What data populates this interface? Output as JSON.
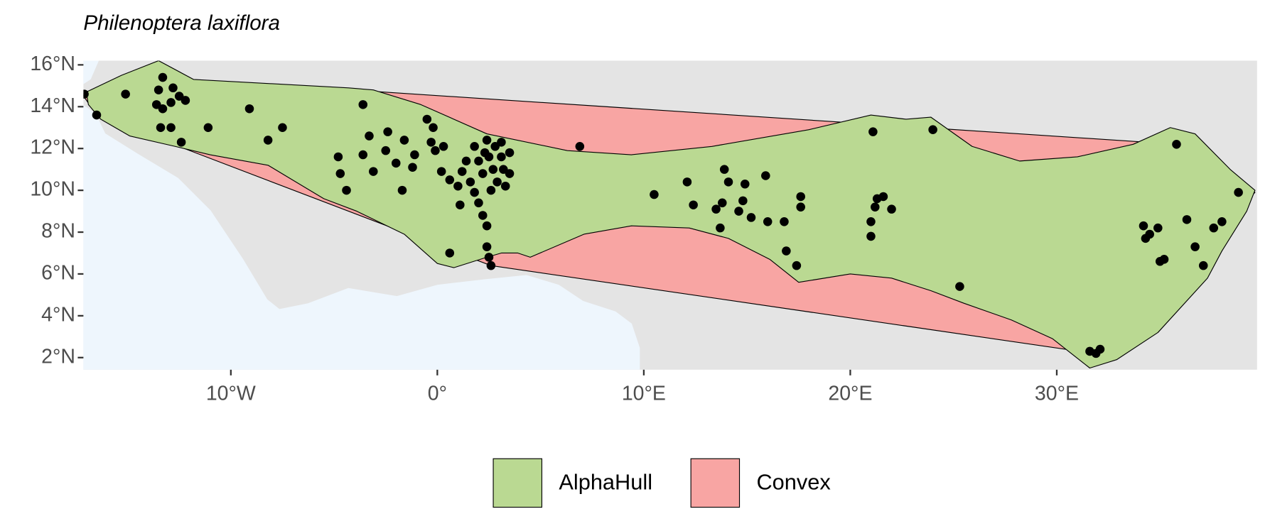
{
  "chart_data": {
    "type": "map",
    "title": "Philenoptera laxiflora",
    "xlim": [
      -17.14,
      39.7
    ],
    "ylim": [
      1.42,
      16.2
    ],
    "xticks": [
      {
        "value": -10,
        "label": "10°W"
      },
      {
        "value": 0,
        "label": "0°"
      },
      {
        "value": 10,
        "label": "10°E"
      },
      {
        "value": 20,
        "label": "20°E"
      },
      {
        "value": 30,
        "label": "30°E"
      }
    ],
    "yticks": [
      {
        "value": 2,
        "label": "2°N"
      },
      {
        "value": 4,
        "label": "4°N"
      },
      {
        "value": 6,
        "label": "6°N"
      },
      {
        "value": 8,
        "label": "8°N"
      },
      {
        "value": 10,
        "label": "10°N"
      },
      {
        "value": 12,
        "label": "12°N"
      },
      {
        "value": 14,
        "label": "14°N"
      },
      {
        "value": 16,
        "label": "16°N"
      }
    ],
    "legend": "bottom",
    "series": [
      {
        "name": "AlphaHull",
        "color": "#bad992",
        "x": [
          -17.0,
          -15.3,
          -13.5,
          -11.8,
          -4.3,
          -3.1,
          -0.8,
          2.4,
          6.3,
          9.4,
          13.3,
          18.0,
          21.0,
          22.7,
          23.9,
          25.9,
          28.2,
          31.0,
          33.7,
          35.5,
          36.7,
          38.4,
          39.6,
          39.2,
          38.0,
          37.3,
          34.9,
          32.9,
          31.6,
          29.8,
          27.8,
          25.5,
          23.9,
          22.0,
          20.0,
          17.5,
          16.1,
          14.1,
          12.2,
          9.4,
          7.1,
          4.5,
          3.9,
          3.1,
          2.4,
          0.8,
          0.0,
          -1.6,
          -3.9,
          -5.5,
          -8.2,
          -11.0,
          -12.7,
          -14.9,
          -16.3,
          -16.9
        ],
        "y": [
          14.7,
          15.5,
          16.2,
          15.3,
          14.9,
          14.8,
          14.1,
          12.7,
          11.9,
          11.7,
          12.1,
          12.9,
          13.6,
          13.4,
          13.5,
          12.1,
          11.4,
          11.6,
          12.2,
          13.0,
          12.7,
          11.0,
          10.0,
          9.0,
          7.1,
          5.8,
          3.2,
          1.9,
          1.5,
          2.9,
          3.8,
          4.6,
          5.2,
          5.8,
          6.0,
          5.6,
          6.7,
          7.7,
          8.2,
          8.3,
          7.9,
          6.8,
          7.0,
          7.0,
          6.8,
          6.3,
          6.5,
          7.9,
          9.0,
          9.6,
          11.2,
          11.7,
          12.1,
          12.6,
          13.4,
          14.1
        ]
      },
      {
        "name": "Convex",
        "color": "#f8a5a3",
        "x": [
          -17.2,
          -13.4,
          35.9,
          39.6,
          31.8,
          2.6,
          -16.5
        ],
        "y": [
          14.6,
          15.4,
          12.2,
          9.9,
          2.2,
          6.4,
          13.6
        ]
      }
    ],
    "points": {
      "color": "#000000",
      "x": [
        -17.1,
        -16.5,
        -15.1,
        -13.3,
        -13.5,
        -13.6,
        -13.3,
        -12.9,
        -12.8,
        -12.5,
        -12.2,
        -13.4,
        -12.9,
        -12.4,
        -11.1,
        -9.1,
        -8.2,
        -7.5,
        -3.6,
        -4.8,
        -4.7,
        -4.4,
        -3.6,
        -3.3,
        -3.1,
        -2.5,
        -2.4,
        -2.0,
        -1.7,
        -1.6,
        -1.2,
        -1.1,
        -0.5,
        -0.3,
        -0.2,
        -0.1,
        0.3,
        0.2,
        0.6,
        0.6,
        1.0,
        1.2,
        1.1,
        1.4,
        1.6,
        1.8,
        1.8,
        2.0,
        2.2,
        2.3,
        2.4,
        2.0,
        2.2,
        2.4,
        2.4,
        2.5,
        2.6,
        2.6,
        2.5,
        2.7,
        2.8,
        2.9,
        3.1,
        3.1,
        3.2,
        3.3,
        3.5,
        3.5,
        6.9,
        10.5,
        12.1,
        12.4,
        13.5,
        13.7,
        13.9,
        14.1,
        13.8,
        14.6,
        14.8,
        14.9,
        15.2,
        15.9,
        16.0,
        16.9,
        16.8,
        17.4,
        17.6,
        17.6,
        21.0,
        21.0,
        21.2,
        21.3,
        21.6,
        22.0,
        21.1,
        24.0,
        25.3,
        31.6,
        32.1,
        31.9,
        34.2,
        34.3,
        34.9,
        34.5,
        35.0,
        35.2,
        35.8,
        36.3,
        36.7,
        37.1,
        37.6,
        38.0,
        38.8
      ],
      "y": [
        14.6,
        13.6,
        14.6,
        15.4,
        14.8,
        14.1,
        13.9,
        14.2,
        14.9,
        14.5,
        14.3,
        13.0,
        13.0,
        12.3,
        13.0,
        13.9,
        12.4,
        13.0,
        14.1,
        11.6,
        10.8,
        10.0,
        11.7,
        12.6,
        10.9,
        11.9,
        12.8,
        11.3,
        10.0,
        12.4,
        11.1,
        11.7,
        13.4,
        12.3,
        13.0,
        11.9,
        12.1,
        10.9,
        10.5,
        7.0,
        10.2,
        10.9,
        9.3,
        11.4,
        10.4,
        9.9,
        12.1,
        11.4,
        10.8,
        11.8,
        12.4,
        9.4,
        8.8,
        8.3,
        7.3,
        6.8,
        6.4,
        10.0,
        11.6,
        11.0,
        12.1,
        10.4,
        11.6,
        12.3,
        11.0,
        10.2,
        11.8,
        10.8,
        12.1,
        9.8,
        10.4,
        9.3,
        9.1,
        8.2,
        11.0,
        10.4,
        9.4,
        9.0,
        9.5,
        10.3,
        8.7,
        10.7,
        8.5,
        7.1,
        8.5,
        6.4,
        9.7,
        9.2,
        7.8,
        8.5,
        9.2,
        9.6,
        9.7,
        9.1,
        12.8,
        12.9,
        5.4,
        2.3,
        2.4,
        2.2,
        8.3,
        7.7,
        8.2,
        7.9,
        6.6,
        6.7,
        12.2,
        8.6,
        7.3,
        6.4,
        8.2,
        8.5,
        9.9
      ]
    }
  }
}
